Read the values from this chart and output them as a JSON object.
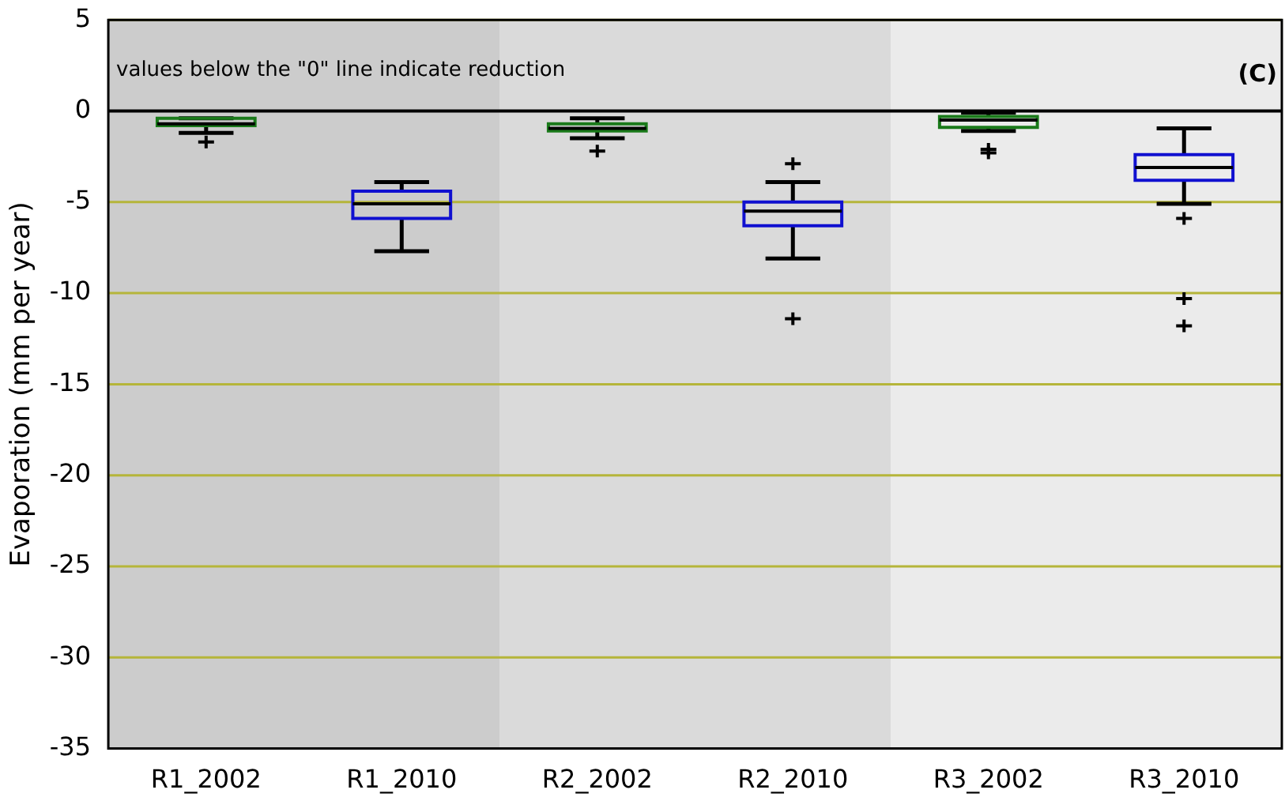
{
  "chart_data": {
    "type": "box",
    "ylabel": "Evaporation (mm per year)",
    "categories": [
      "R1_2002",
      "R1_2010",
      "R2_2002",
      "R2_2010",
      "R3_2002",
      "R3_2010"
    ],
    "boxes": [
      {
        "low": -1.2,
        "q1": -0.8,
        "median": -0.7,
        "q3": -0.4,
        "high": -0.4,
        "outliers": [
          -1.7
        ]
      },
      {
        "low": -7.7,
        "q1": -5.9,
        "median": -5.1,
        "q3": -4.4,
        "high": -3.9
      },
      {
        "low": -1.5,
        "q1": -1.1,
        "median": -0.95,
        "q3": -0.7,
        "high": -0.4,
        "outliers": [
          -2.2
        ]
      },
      {
        "low": -8.1,
        "q1": -6.3,
        "median": -5.5,
        "q3": -5.0,
        "high": -3.9,
        "outliers": [
          -2.9,
          -11.4
        ]
      },
      {
        "low": -1.1,
        "q1": -0.9,
        "median": -0.5,
        "q3": -0.3,
        "high": -0.1,
        "outliers": [
          -2.1,
          -2.3
        ]
      },
      {
        "low": -5.1,
        "q1": -3.8,
        "median": -3.1,
        "q3": -2.4,
        "high": -0.95,
        "outliers": [
          -5.9,
          -10.3,
          -11.8
        ]
      }
    ],
    "colors": [
      "#1a7a1a",
      "#1010d0",
      "#1a7a1a",
      "#1010d0",
      "#1a7a1a",
      "#1010d0"
    ],
    "ylim": [
      -35,
      5
    ],
    "yticks": [
      -35,
      -30,
      -25,
      -20,
      -15,
      -10,
      -5,
      0,
      5
    ],
    "grid": "y",
    "ref_lines": [
      {
        "axis": "y",
        "value": 0,
        "color": "#000000"
      }
    ],
    "bands": [
      {
        "axis": "x",
        "from": "R1_2002",
        "to": "R1_2010",
        "color": "#cccccc"
      },
      {
        "axis": "x",
        "from": "R2_2002",
        "to": "R2_2010",
        "color": "#dadada"
      },
      {
        "axis": "x",
        "from": "R3_2002",
        "to": "R3_2010",
        "color": "#ebebeb"
      }
    ],
    "annotations": [
      "values below the \"0\" line indicate reduction",
      "(C)"
    ]
  }
}
